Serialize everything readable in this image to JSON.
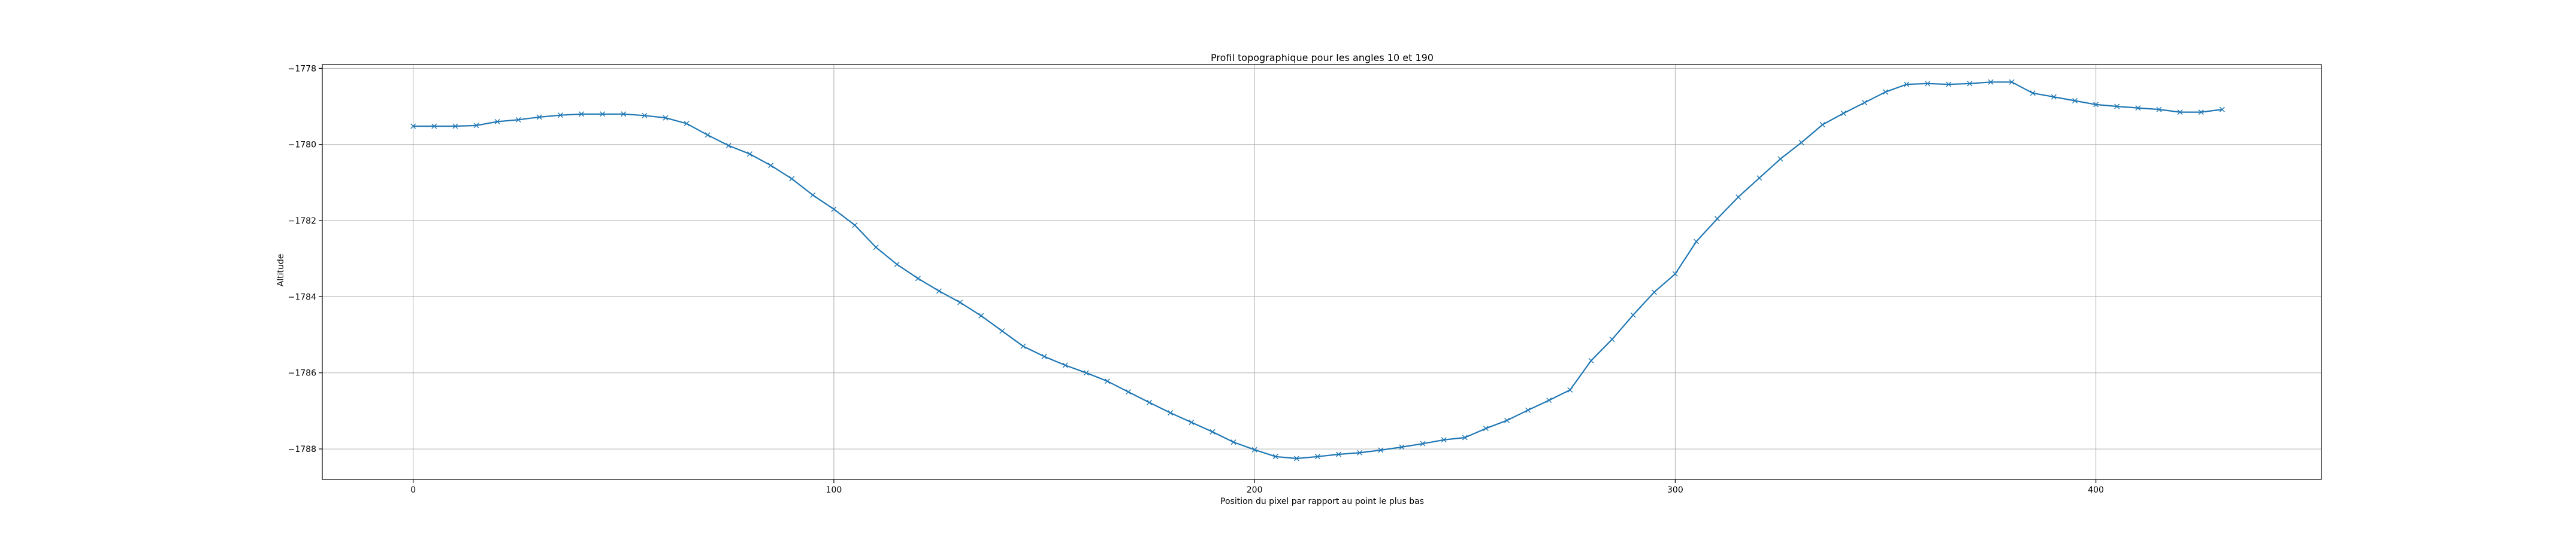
{
  "chart_data": {
    "type": "line",
    "title": "Profil topographique pour les angles 10 et 190",
    "xlabel": "Position du pixel par rapport au point le plus bas",
    "ylabel": "Altitude",
    "xlim": [
      -21.6,
      453.6
    ],
    "ylim": [
      -1788.8,
      -1777.9
    ],
    "xticks": [
      0,
      100,
      200,
      300,
      400
    ],
    "xtick_labels": [
      "0",
      "100",
      "200",
      "300",
      "400"
    ],
    "yticks": [
      -1778,
      -1780,
      -1782,
      -1784,
      -1786,
      -1788
    ],
    "ytick_labels": [
      "−1778",
      "−1780",
      "−1782",
      "−1784",
      "−1786",
      "−1788"
    ],
    "grid": true,
    "series": [
      {
        "color": "#1f77b4",
        "marker": "x",
        "x": [
          0,
          5,
          10,
          15,
          20,
          25,
          30,
          35,
          40,
          45,
          50,
          55,
          60,
          65,
          70,
          75,
          80,
          85,
          90,
          95,
          100,
          105,
          110,
          115,
          120,
          125,
          130,
          135,
          140,
          145,
          150,
          155,
          160,
          165,
          170,
          175,
          180,
          185,
          190,
          195,
          200,
          205,
          210,
          215,
          220,
          225,
          230,
          235,
          240,
          245,
          250,
          255,
          260,
          265,
          270,
          275,
          280,
          285,
          290,
          295,
          300,
          305,
          310,
          315,
          320,
          325,
          330,
          335,
          340,
          345,
          350,
          355,
          360,
          365,
          370,
          375,
          380,
          385,
          390,
          395,
          400,
          405,
          410,
          415,
          420,
          425,
          430
        ],
        "y": [
          -1779.52,
          -1779.52,
          -1779.52,
          -1779.5,
          -1779.4,
          -1779.35,
          -1779.28,
          -1779.23,
          -1779.2,
          -1779.2,
          -1779.2,
          -1779.24,
          -1779.3,
          -1779.45,
          -1779.75,
          -1780.03,
          -1780.25,
          -1780.55,
          -1780.9,
          -1781.33,
          -1781.7,
          -1782.12,
          -1782.7,
          -1783.15,
          -1783.52,
          -1783.85,
          -1784.15,
          -1784.5,
          -1784.9,
          -1785.3,
          -1785.57,
          -1785.8,
          -1786.0,
          -1786.22,
          -1786.5,
          -1786.78,
          -1787.05,
          -1787.3,
          -1787.55,
          -1787.82,
          -1788.02,
          -1788.2,
          -1788.25,
          -1788.2,
          -1788.14,
          -1788.1,
          -1788.03,
          -1787.95,
          -1787.86,
          -1787.76,
          -1787.7,
          -1787.46,
          -1787.25,
          -1786.98,
          -1786.72,
          -1786.45,
          -1785.68,
          -1785.12,
          -1784.48,
          -1783.88,
          -1783.4,
          -1782.55,
          -1781.95,
          -1781.38,
          -1780.88,
          -1780.38,
          -1779.95,
          -1779.48,
          -1779.18,
          -1778.9,
          -1778.62,
          -1778.42,
          -1778.4,
          -1778.42,
          -1778.4,
          -1778.36,
          -1778.36,
          -1778.65,
          -1778.75,
          -1778.85,
          -1778.95,
          -1779.0,
          -1779.04,
          -1779.08,
          -1779.15,
          -1779.15,
          -1779.08
        ]
      }
    ]
  }
}
